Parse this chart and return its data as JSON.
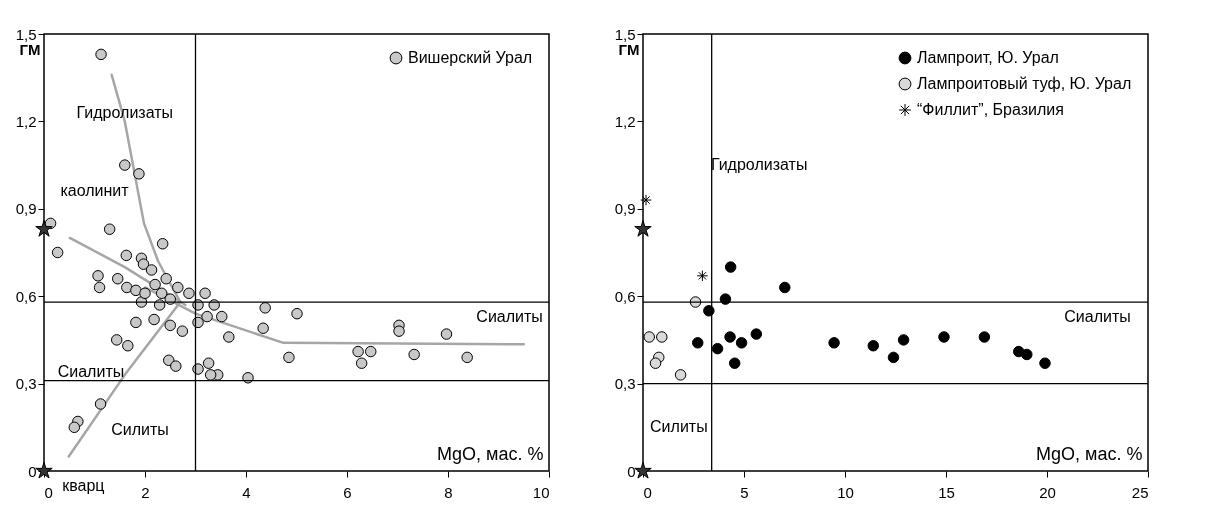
{
  "chart_data": [
    {
      "type": "scatter",
      "xlabel": "MgO, мас. %",
      "ylabel": "ГМ",
      "xlim": [
        0,
        10
      ],
      "ylim": [
        0,
        1.5
      ],
      "xticks": [
        0,
        2,
        4,
        6,
        8,
        10
      ],
      "yticks": [
        0,
        {
          "value": 0.3,
          "label": "0,3"
        },
        {
          "value": 0.6,
          "label": "0,6"
        },
        {
          "value": 0.9,
          "label": "0,9"
        },
        {
          "value": 1.2,
          "label": "1,2"
        },
        {
          "value": 1.5,
          "label": "1,5"
        }
      ],
      "legend": "top right",
      "series": [
        {
          "name": "Вишерский Урал",
          "type": "scatter",
          "marker": "circle",
          "color": "#c8c8c8",
          "x": [
            1.13,
            1.6,
            1.88,
            0.13,
            1.3,
            2.35,
            0.27,
            1.63,
            1.93,
            1.97,
            2.13,
            1.07,
            1.1,
            1.46,
            1.64,
            1.82,
            1.93,
            2.0,
            2.2,
            2.33,
            2.42,
            2.5,
            2.29,
            2.65,
            2.87,
            3.05,
            3.19,
            3.37,
            3.23,
            3.52,
            3.05,
            2.18,
            1.82,
            2.5,
            2.74,
            3.66,
            4.38,
            4.34,
            5.01,
            4.85,
            1.44,
            1.66,
            2.47,
            2.61,
            3.05,
            3.26,
            3.44,
            3.3,
            4.04,
            6.22,
            6.47,
            6.29,
            7.03,
            7.03,
            7.33,
            7.97,
            8.38,
            1.12,
            0.67,
            0.6
          ],
          "values": [
            1.43,
            1.05,
            1.02,
            0.85,
            0.83,
            0.78,
            0.75,
            0.74,
            0.73,
            0.71,
            0.69,
            0.67,
            0.63,
            0.66,
            0.63,
            0.62,
            0.58,
            0.61,
            0.64,
            0.61,
            0.66,
            0.59,
            0.57,
            0.63,
            0.61,
            0.57,
            0.61,
            0.57,
            0.53,
            0.53,
            0.51,
            0.52,
            0.51,
            0.5,
            0.48,
            0.46,
            0.56,
            0.49,
            0.54,
            0.39,
            0.45,
            0.43,
            0.38,
            0.36,
            0.35,
            0.37,
            0.33,
            0.33,
            0.32,
            0.41,
            0.41,
            0.37,
            0.5,
            0.48,
            0.4,
            0.47,
            0.39,
            0.23,
            0.17,
            0.15
          ]
        },
        {
          "type": "scatter",
          "marker": "star",
          "color": "#333333",
          "x": [
            0,
            0
          ],
          "values": [
            0.83,
            0
          ]
        },
        {
          "type": "line",
          "color": "#a6a6a6",
          "x": [
            2.7,
            2.26,
            1.98,
            1.6,
            1.34
          ],
          "values": [
            0.58,
            0.72,
            0.85,
            1.2,
            1.36
          ]
        },
        {
          "type": "line",
          "color": "#a6a6a6",
          "x": [
            2.8,
            1.6,
            0.51
          ],
          "values": [
            0.57,
            0.7,
            0.8
          ]
        },
        {
          "type": "line",
          "color": "#a6a6a6",
          "x": [
            2.0,
            3.0,
            4.74,
            9.5
          ],
          "values": [
            0.63,
            0.54,
            0.44,
            0.435
          ]
        },
        {
          "type": "line",
          "color": "#a6a6a6",
          "x": [
            2.7,
            1.6,
            0.49
          ],
          "values": [
            0.58,
            0.33,
            0.05
          ]
        }
      ],
      "ref_lines": [
        {
          "axis": "x",
          "value": 3
        },
        {
          "axis": "y",
          "value": 0.58
        },
        {
          "axis": "y",
          "value": 0.31
        }
      ],
      "annotations": [
        "Гидролизаты",
        "каолинит",
        "Сиалиты",
        "Сиалиты",
        "Силиты",
        "кварц"
      ]
    },
    {
      "type": "scatter",
      "xlabel": "MgO, мас. %",
      "ylabel": "ГМ",
      "xlim": [
        0,
        25
      ],
      "ylim": [
        0,
        1.5
      ],
      "xticks": [
        0,
        5,
        10,
        15,
        20,
        25
      ],
      "yticks": [
        0,
        {
          "value": 0.3,
          "label": "0,3"
        },
        {
          "value": 0.6,
          "label": "0,6"
        },
        {
          "value": 0.9,
          "label": "0,9"
        },
        {
          "value": 1.2,
          "label": "1,2"
        },
        {
          "value": 1.5,
          "label": "1,5"
        }
      ],
      "legend": "top right",
      "series": [
        {
          "name": "Лампроит, Ю. Урал",
          "type": "scatter",
          "marker": "circle",
          "color": "#000000",
          "x": [
            4.34,
            7.02,
            4.08,
            3.26,
            2.71,
            3.69,
            4.31,
            4.88,
            5.61,
            4.54,
            9.46,
            11.4,
            12.9,
            12.4,
            14.9,
            16.9,
            18.6,
            19.0,
            19.9
          ],
          "values": [
            0.7,
            0.63,
            0.59,
            0.55,
            0.44,
            0.42,
            0.46,
            0.44,
            0.47,
            0.37,
            0.44,
            0.43,
            0.45,
            0.39,
            0.46,
            0.46,
            0.41,
            0.4,
            0.37
          ]
        },
        {
          "name": "Лампроитовый туф, Ю. Урал",
          "type": "scatter",
          "marker": "circle",
          "color": "#d9d9d9",
          "x": [
            2.6,
            0.31,
            0.93,
            0.78,
            0.62,
            1.86
          ],
          "values": [
            0.58,
            0.46,
            0.46,
            0.39,
            0.37,
            0.33
          ]
        },
        {
          "name": "“Филлит”, Бразилия",
          "type": "scatter",
          "marker": "cross",
          "color": "#000000",
          "x": [
            0.15,
            2.94
          ],
          "values": [
            0.93,
            0.67
          ]
        },
        {
          "type": "scatter",
          "marker": "star",
          "color": "#333333",
          "x": [
            0,
            0
          ],
          "values": [
            0.83,
            0
          ]
        }
      ],
      "ref_lines": [
        {
          "axis": "x",
          "value": 3.4
        },
        {
          "axis": "y",
          "value": 0.58
        },
        {
          "axis": "y",
          "value": 0.3
        }
      ],
      "annotations": [
        "Гидролизаты",
        "Сиалиты",
        "Силиты"
      ]
    }
  ]
}
